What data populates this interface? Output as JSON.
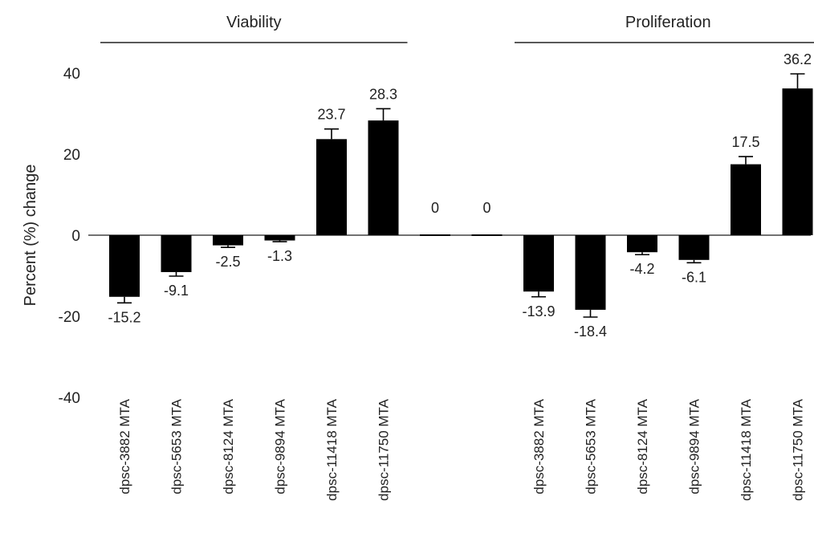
{
  "chart_data": {
    "type": "bar",
    "ylabel": "Percent (%) change",
    "ylim": [
      -40,
      40
    ],
    "yticks": [
      40,
      20,
      0,
      -20,
      -40
    ],
    "groups": [
      "Viability",
      "Proliferation"
    ],
    "categories": [
      "dpsc-3882 MTA",
      "dpsc-5653 MTA",
      "dpsc-8124 MTA",
      "dpsc-9894 MTA",
      "dpsc-11418 MTA",
      "dpsc-11750 MTA",
      "",
      "",
      "dpsc-3882 MTA",
      "dpsc-5653 MTA",
      "dpsc-8124 MTA",
      "dpsc-9894 MTA",
      "dpsc-11418 MTA",
      "dpsc-11750 MTA"
    ],
    "values": [
      -15.2,
      -9.1,
      -2.5,
      -1.3,
      23.7,
      28.3,
      0,
      0,
      -13.9,
      -18.4,
      -4.2,
      -6.1,
      17.5,
      36.2
    ],
    "value_labels": [
      "-15.2",
      "-9.1",
      "-2.5",
      "-1.3",
      "23.7",
      "28.3",
      "0",
      "0",
      "-13.9",
      "-18.4",
      "-4.2",
      "-6.1",
      "17.5",
      "36.2"
    ],
    "errors": [
      1.5,
      1.0,
      0.5,
      0.3,
      2.5,
      2.9,
      0,
      0,
      1.3,
      1.8,
      0.6,
      0.7,
      1.9,
      3.6
    ],
    "bar_color": "#000000",
    "grid": false
  }
}
